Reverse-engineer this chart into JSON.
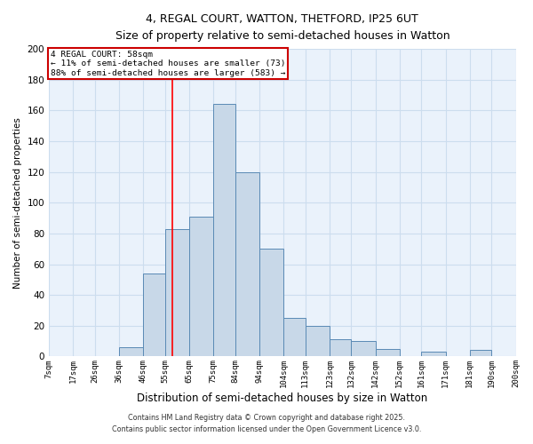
{
  "title1": "4, REGAL COURT, WATTON, THETFORD, IP25 6UT",
  "title2": "Size of property relative to semi-detached houses in Watton",
  "xlabel": "Distribution of semi-detached houses by size in Watton",
  "ylabel": "Number of semi-detached properties",
  "bin_labels": [
    "7sqm",
    "17sqm",
    "26sqm",
    "36sqm",
    "46sqm",
    "55sqm",
    "65sqm",
    "75sqm",
    "84sqm",
    "94sqm",
    "104sqm",
    "113sqm",
    "123sqm",
    "132sqm",
    "142sqm",
    "152sqm",
    "161sqm",
    "171sqm",
    "181sqm",
    "190sqm",
    "200sqm"
  ],
  "bar_values": [
    0,
    0,
    0,
    6,
    54,
    83,
    91,
    164,
    120,
    70,
    25,
    20,
    11,
    10,
    5,
    0,
    3,
    0,
    4,
    0
  ],
  "bar_color": "#c8d8e8",
  "bar_edge_color": "#5a8ab5",
  "grid_color": "#ccddee",
  "property_line_x": 58,
  "bin_edges": [
    7,
    17,
    26,
    36,
    46,
    55,
    65,
    75,
    84,
    94,
    104,
    113,
    123,
    132,
    142,
    152,
    161,
    171,
    181,
    190,
    200
  ],
  "annotation_title": "4 REGAL COURT: 58sqm",
  "annotation_line1": "← 11% of semi-detached houses are smaller (73)",
  "annotation_line2": "88% of semi-detached houses are larger (583) →",
  "annotation_box_color": "#cc0000",
  "ylim": [
    0,
    200
  ],
  "yticks": [
    0,
    20,
    40,
    60,
    80,
    100,
    120,
    140,
    160,
    180,
    200
  ],
  "footer1": "Contains HM Land Registry data © Crown copyright and database right 2025.",
  "footer2": "Contains public sector information licensed under the Open Government Licence v3.0."
}
